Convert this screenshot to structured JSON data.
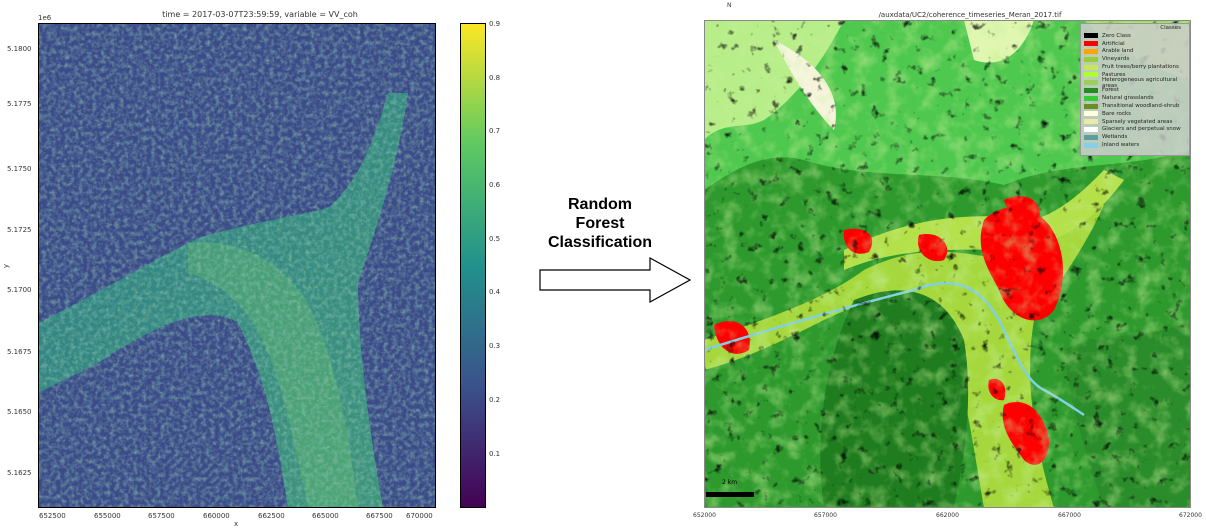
{
  "chart_data": [
    {
      "type": "heatmap",
      "title": "time = 2017-03-07T23:59:59, variable = VV_coh",
      "xlabel": "x",
      "ylabel": "y",
      "y_offset_label": "1e6",
      "x_ticks": [
        "652500",
        "655000",
        "657500",
        "660000",
        "662500",
        "665000",
        "667500",
        "670000"
      ],
      "y_ticks": [
        "5.1800",
        "5.1775",
        "5.1750",
        "5.1725",
        "5.1700",
        "5.1675",
        "5.1650",
        "5.1625"
      ],
      "colorbar": {
        "ticks": [
          "0.9",
          "0.8",
          "0.7",
          "0.6",
          "0.5",
          "0.4",
          "0.3",
          "0.2",
          "0.1"
        ],
        "range": [
          0,
          0.9
        ],
        "colormap": [
          "#440154",
          "#31688e",
          "#21918c",
          "#35b779",
          "#fde725"
        ]
      }
    },
    {
      "type": "heatmap",
      "title": "/auxdata/UC2/coherence_timeseries_Meran_2017.tif",
      "north_label": "N",
      "scalebar_label": "2 km",
      "x_ticks": [
        "652000",
        "657000",
        "662000",
        "667000",
        "672000"
      ],
      "legend": {
        "title": "Classes",
        "entries": [
          {
            "label": "Zero Class",
            "color": "#000000"
          },
          {
            "label": "Artificial",
            "color": "#ff0000"
          },
          {
            "label": "Arable land",
            "color": "#ffa500"
          },
          {
            "label": "Vineyards",
            "color": "#9acd32"
          },
          {
            "label": "Fruit trees/berry plantations",
            "color": "#c8e65a"
          },
          {
            "label": "Pastures",
            "color": "#adff2f"
          },
          {
            "label": "Heterogeneous agricultural areas",
            "color": "#9ccf5c"
          },
          {
            "label": "Forest",
            "color": "#228b22"
          },
          {
            "label": "Natural grasslands",
            "color": "#32cd32"
          },
          {
            "label": "Transitional woodland-shrub",
            "color": "#6b8e23"
          },
          {
            "label": "Bare rocks",
            "color": "#ffffe0"
          },
          {
            "label": "Sparsely vegetated areas",
            "color": "#eee8aa"
          },
          {
            "label": "Glaciers and perpetual snow",
            "color": "#ffffff"
          },
          {
            "label": "Wetlands",
            "color": "#5f9ea0"
          },
          {
            "label": "Inland waters",
            "color": "#87ceeb"
          }
        ]
      }
    }
  ],
  "arrow": {
    "line1": "Random",
    "line2": "Forest",
    "line3": "Classification"
  }
}
